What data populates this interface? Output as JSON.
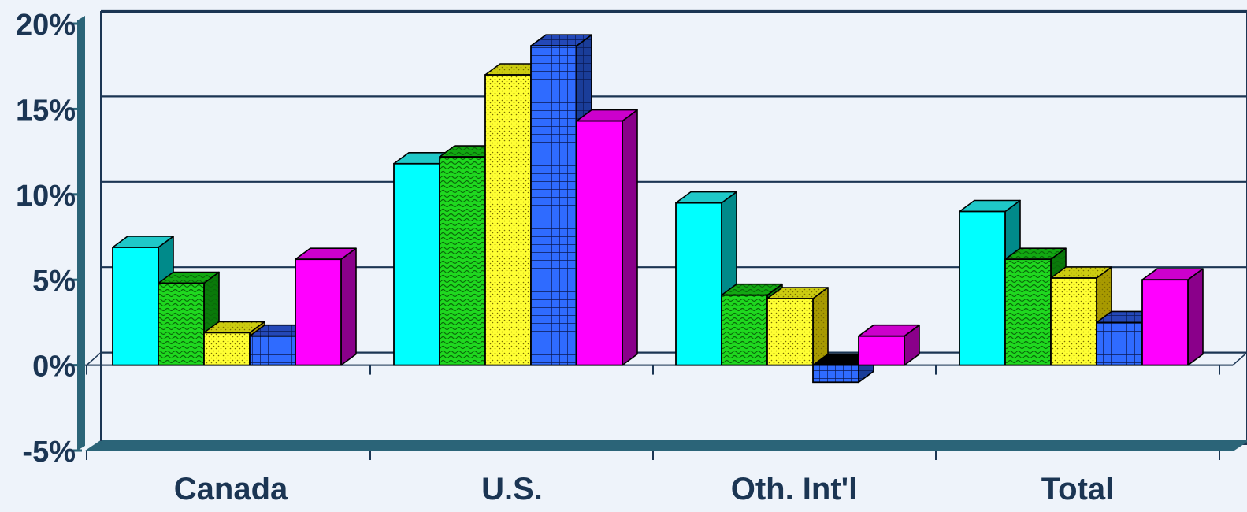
{
  "chart_data": {
    "type": "bar",
    "categories": [
      "Canada",
      "U.S.",
      "Oth. Int'l",
      "Total"
    ],
    "series": [
      {
        "values": [
          6.9,
          11.8,
          9.5,
          9.0
        ]
      },
      {
        "values": [
          4.8,
          12.2,
          4.1,
          6.2
        ]
      },
      {
        "values": [
          1.9,
          17.0,
          3.9,
          5.1
        ]
      },
      {
        "values": [
          1.7,
          18.7,
          -1.0,
          2.5
        ]
      },
      {
        "values": [
          6.2,
          14.3,
          1.7,
          5.0
        ]
      }
    ],
    "ylim": [
      -5,
      20
    ],
    "yticks": [
      -5,
      0,
      5,
      10,
      15,
      20
    ],
    "ytick_labels": [
      "-5%",
      "0%",
      "5%",
      "10%",
      "15%",
      "20%"
    ],
    "grid": true,
    "legend": "none",
    "style": "3d-column",
    "colors": {
      "series_fill": [
        "#00ffff",
        "#1fd81f",
        "#ffff33",
        "#2f6bff",
        "#ff00ff"
      ],
      "series_side": [
        "#008a8a",
        "#0a7a0a",
        "#a89a00",
        "#1a3d99",
        "#8a008a"
      ],
      "series_top": [
        "#1fc8c8",
        "#12a812",
        "#cccc10",
        "#2448b8",
        "#cc00cc"
      ],
      "series_pattern": [
        "none",
        "wave",
        "dots",
        "grid",
        "none"
      ],
      "axis": "#2b6478",
      "floor": "#2b6478",
      "gridline": "#1b3553",
      "background": "#eef3fa",
      "text": "#1b3553"
    }
  }
}
